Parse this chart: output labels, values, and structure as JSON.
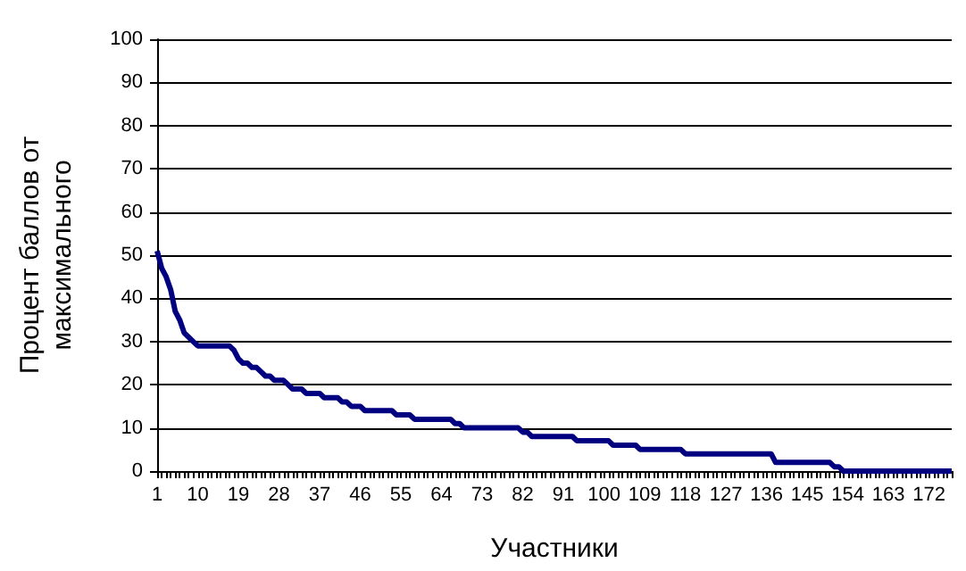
{
  "chart_data": {
    "type": "line",
    "xlabel": "Участники",
    "ylabel": "Процент баллов от максимального",
    "categories": [
      "1",
      null,
      null,
      null,
      null,
      null,
      null,
      null,
      null,
      "10",
      null,
      null,
      null,
      null,
      null,
      null,
      null,
      null,
      "19",
      null,
      null,
      null,
      null,
      null,
      null,
      null,
      null,
      "28",
      null,
      null,
      null,
      null,
      null,
      null,
      null,
      null,
      "37",
      null,
      null,
      null,
      null,
      null,
      null,
      null,
      null,
      "46",
      null,
      null,
      null,
      null,
      null,
      null,
      null,
      null,
      "55",
      null,
      null,
      null,
      null,
      null,
      null,
      null,
      null,
      "64",
      null,
      null,
      null,
      null,
      null,
      null,
      null,
      null,
      "73",
      null,
      null,
      null,
      null,
      null,
      null,
      null,
      null,
      "82",
      null,
      null,
      null,
      null,
      null,
      null,
      null,
      null,
      "91",
      null,
      null,
      null,
      null,
      null,
      null,
      null,
      null,
      "100",
      null,
      null,
      null,
      null,
      null,
      null,
      null,
      null,
      "109",
      null,
      null,
      null,
      null,
      null,
      null,
      null,
      null,
      "118",
      null,
      null,
      null,
      null,
      null,
      null,
      null,
      null,
      "127",
      null,
      null,
      null,
      null,
      null,
      null,
      null,
      null,
      "136",
      null,
      null,
      null,
      null,
      null,
      null,
      null,
      null,
      "145",
      null,
      null,
      null,
      null,
      null,
      null,
      null,
      null,
      "154",
      null,
      null,
      null,
      null,
      null,
      null,
      null,
      null,
      "163",
      null,
      null,
      null,
      null,
      null,
      null,
      null,
      null,
      "172",
      null,
      null,
      null,
      null,
      null
    ],
    "series": [
      {
        "color": "#000080",
        "values": [
          51,
          47,
          45,
          42,
          37,
          35,
          32,
          31,
          30,
          29,
          29,
          29,
          29,
          29,
          29,
          29,
          29,
          28,
          26,
          25,
          25,
          24,
          24,
          23,
          22,
          22,
          21,
          21,
          21,
          20,
          19,
          19,
          19,
          18,
          18,
          18,
          18,
          17,
          17,
          17,
          17,
          16,
          16,
          15,
          15,
          15,
          14,
          14,
          14,
          14,
          14,
          14,
          14,
          13,
          13,
          13,
          13,
          12,
          12,
          12,
          12,
          12,
          12,
          12,
          12,
          12,
          11,
          11,
          10,
          10,
          10,
          10,
          10,
          10,
          10,
          10,
          10,
          10,
          10,
          10,
          10,
          9,
          9,
          8,
          8,
          8,
          8,
          8,
          8,
          8,
          8,
          8,
          8,
          7,
          7,
          7,
          7,
          7,
          7,
          7,
          7,
          6,
          6,
          6,
          6,
          6,
          6,
          5,
          5,
          5,
          5,
          5,
          5,
          5,
          5,
          5,
          5,
          4,
          4,
          4,
          4,
          4,
          4,
          4,
          4,
          4,
          4,
          4,
          4,
          4,
          4,
          4,
          4,
          4,
          4,
          4,
          4,
          2,
          2,
          2,
          2,
          2,
          2,
          2,
          2,
          2,
          2,
          2,
          2,
          2,
          1,
          1,
          0,
          0,
          0,
          0,
          0,
          0,
          0,
          0,
          0,
          0,
          0,
          0,
          0,
          0,
          0,
          0,
          0,
          0,
          0,
          0,
          0,
          0,
          0,
          0,
          0
        ]
      }
    ],
    "ylim": [
      0,
      100
    ],
    "yticks": [
      0,
      10,
      20,
      30,
      40,
      50,
      60,
      70,
      80,
      90,
      100
    ],
    "grid": "y",
    "marker": "none",
    "line_style": "solid"
  }
}
